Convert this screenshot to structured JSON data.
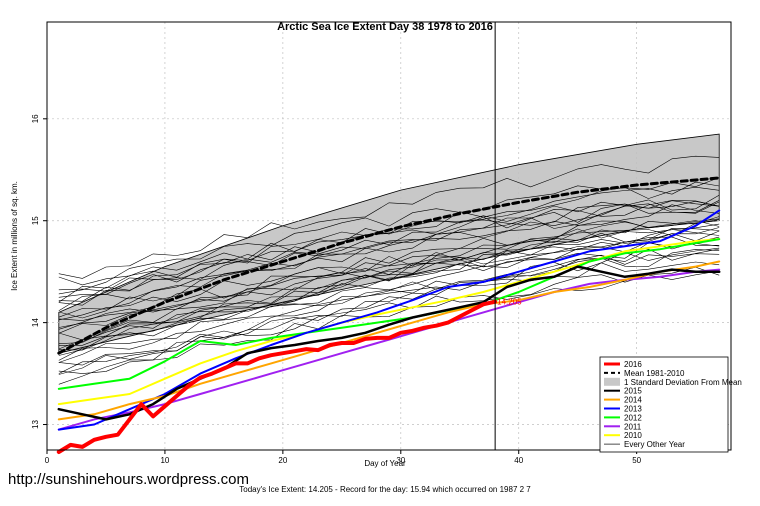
{
  "chart_data": {
    "type": "line",
    "title": "Arctic Sea Ice Extent Day 38 1978 to 2016",
    "xlabel": "Day of Year",
    "ylabel": "Ice Extent in millions of sq. km.",
    "xlim": [
      0,
      58
    ],
    "ylim": [
      12.75,
      16.95
    ],
    "xticks": [
      "0",
      "10",
      "20",
      "30",
      "40",
      "50"
    ],
    "yticks": [
      "13",
      "14",
      "15",
      "16"
    ],
    "today_day": 38,
    "today_value_label": "14.205",
    "caption": "Today's Ice Extent: 14.205  - Record for the day: 15.94 which occurred on 1987 2 7",
    "website": "http://sunshinehours.wordpress.com",
    "std_band": {
      "x": [
        1,
        10,
        20,
        30,
        40,
        50,
        57
      ],
      "lower": [
        13.7,
        13.95,
        14.2,
        14.45,
        14.7,
        14.92,
        15.0
      ],
      "upper": [
        14.1,
        14.55,
        14.95,
        15.3,
        15.55,
        15.75,
        15.85
      ]
    },
    "series": [
      {
        "name": "2016",
        "color": "#ff0000",
        "width": 4,
        "dash": "",
        "x": [
          1,
          2,
          3,
          4,
          5,
          6,
          7,
          8,
          9,
          10,
          11,
          12,
          13,
          14,
          15,
          16,
          17,
          18,
          19,
          20,
          21,
          22,
          23,
          24,
          25,
          26,
          27,
          28,
          29,
          30,
          31,
          32,
          33,
          34,
          35,
          36,
          37,
          38
        ],
        "values": [
          12.73,
          12.8,
          12.78,
          12.85,
          12.88,
          12.9,
          13.05,
          13.2,
          13.08,
          13.18,
          13.28,
          13.38,
          13.46,
          13.5,
          13.55,
          13.6,
          13.6,
          13.65,
          13.68,
          13.7,
          13.72,
          13.74,
          13.73,
          13.78,
          13.8,
          13.8,
          13.84,
          13.85,
          13.85,
          13.9,
          13.92,
          13.95,
          13.97,
          14.0,
          14.06,
          14.12,
          14.18,
          14.205
        ]
      },
      {
        "name": "Mean 1981-2010",
        "color": "#000000",
        "width": 3,
        "dash": "6,4",
        "x": [
          1,
          5,
          10,
          15,
          20,
          25,
          30,
          35,
          40,
          45,
          50,
          55,
          57
        ],
        "values": [
          13.7,
          13.95,
          14.2,
          14.42,
          14.6,
          14.78,
          14.94,
          15.07,
          15.18,
          15.28,
          15.35,
          15.4,
          15.42
        ]
      },
      {
        "name": "2015",
        "color": "#000000",
        "width": 2.5,
        "dash": "",
        "x": [
          1,
          3,
          5,
          7,
          9,
          11,
          13,
          15,
          17,
          19,
          21,
          23,
          25,
          27,
          29,
          31,
          33,
          35,
          37,
          39,
          41,
          43,
          45,
          47,
          49,
          51,
          53,
          55,
          57
        ],
        "values": [
          13.15,
          13.1,
          13.05,
          13.1,
          13.2,
          13.35,
          13.45,
          13.55,
          13.7,
          13.75,
          13.78,
          13.82,
          13.85,
          13.9,
          13.98,
          14.05,
          14.1,
          14.15,
          14.2,
          14.35,
          14.42,
          14.45,
          14.55,
          14.5,
          14.45,
          14.48,
          14.52,
          14.5,
          14.5
        ]
      },
      {
        "name": "2014",
        "color": "#ffa500",
        "width": 2,
        "dash": "",
        "x": [
          1,
          4,
          7,
          10,
          13,
          16,
          19,
          22,
          25,
          28,
          31,
          34,
          37,
          40,
          43,
          46,
          49,
          52,
          55,
          57
        ],
        "values": [
          13.05,
          13.1,
          13.2,
          13.28,
          13.4,
          13.5,
          13.6,
          13.7,
          13.8,
          13.9,
          14.0,
          14.1,
          14.18,
          14.22,
          14.3,
          14.35,
          14.42,
          14.5,
          14.55,
          14.6
        ]
      },
      {
        "name": "2013",
        "color": "#0000ff",
        "width": 2,
        "dash": "",
        "x": [
          1,
          4,
          7,
          10,
          13,
          16,
          19,
          22,
          25,
          28,
          31,
          34,
          37,
          40,
          43,
          46,
          49,
          52,
          55,
          57
        ],
        "values": [
          12.95,
          13.0,
          13.15,
          13.3,
          13.5,
          13.65,
          13.78,
          13.9,
          14.0,
          14.1,
          14.22,
          14.35,
          14.4,
          14.5,
          14.6,
          14.7,
          14.75,
          14.8,
          14.95,
          15.1
        ]
      },
      {
        "name": "2012",
        "color": "#00ff00",
        "width": 2,
        "dash": "",
        "x": [
          1,
          4,
          7,
          10,
          13,
          16,
          19,
          22,
          25,
          28,
          31,
          34,
          37,
          40,
          43,
          46,
          49,
          52,
          55,
          57
        ],
        "values": [
          13.35,
          13.4,
          13.45,
          13.62,
          13.82,
          13.78,
          13.85,
          13.9,
          13.95,
          14.0,
          14.05,
          14.12,
          14.18,
          14.3,
          14.45,
          14.6,
          14.68,
          14.72,
          14.78,
          14.82
        ]
      },
      {
        "name": "2011",
        "color": "#a020f0",
        "width": 2,
        "dash": "",
        "x": [
          1,
          4,
          7,
          10,
          13,
          16,
          19,
          22,
          25,
          28,
          31,
          34,
          37,
          40,
          43,
          46,
          49,
          52,
          55,
          57
        ],
        "values": [
          12.95,
          13.05,
          13.12,
          13.2,
          13.3,
          13.4,
          13.5,
          13.6,
          13.7,
          13.8,
          13.9,
          14.0,
          14.1,
          14.2,
          14.3,
          14.38,
          14.42,
          14.45,
          14.5,
          14.52
        ]
      },
      {
        "name": "2010",
        "color": "#ffff00",
        "width": 2,
        "dash": "",
        "x": [
          1,
          4,
          7,
          10,
          13,
          16,
          19,
          22,
          25,
          28,
          31,
          34,
          37,
          40,
          43,
          46,
          49,
          52,
          55,
          57
        ],
        "values": [
          13.2,
          13.25,
          13.3,
          13.45,
          13.6,
          13.72,
          13.82,
          13.9,
          14.0,
          14.08,
          14.15,
          14.22,
          14.3,
          14.4,
          14.5,
          14.6,
          14.7,
          14.75,
          14.8,
          14.82
        ]
      }
    ],
    "legend": [
      {
        "label": "2016",
        "color": "#ff0000",
        "kind": "line",
        "width": 3,
        "dash": ""
      },
      {
        "label": "Mean 1981-2010",
        "color": "#000000",
        "kind": "line",
        "width": 2,
        "dash": "4,3"
      },
      {
        "label": "1 Standard Deviation From Mean",
        "color": "#c8c8c8",
        "kind": "box",
        "width": 0,
        "dash": ""
      },
      {
        "label": "2015",
        "color": "#000000",
        "kind": "line",
        "width": 2,
        "dash": ""
      },
      {
        "label": "2014",
        "color": "#ffa500",
        "kind": "line",
        "width": 2,
        "dash": ""
      },
      {
        "label": "2013",
        "color": "#0000ff",
        "kind": "line",
        "width": 2,
        "dash": ""
      },
      {
        "label": "2012",
        "color": "#00ff00",
        "kind": "line",
        "width": 2,
        "dash": ""
      },
      {
        "label": "2011",
        "color": "#a020f0",
        "kind": "line",
        "width": 2,
        "dash": ""
      },
      {
        "label": "2010",
        "color": "#ffff00",
        "kind": "line",
        "width": 2,
        "dash": ""
      },
      {
        "label": "Every Other Year",
        "color": "#000000",
        "kind": "line",
        "width": 0.7,
        "dash": ""
      }
    ]
  }
}
